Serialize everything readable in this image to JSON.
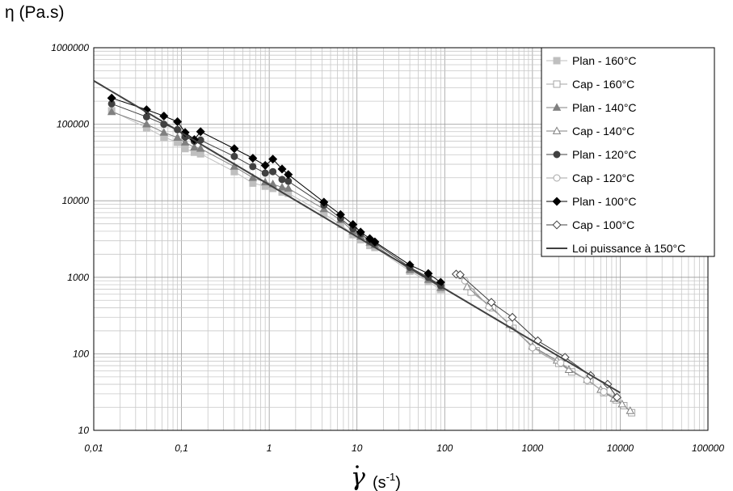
{
  "chart_data": {
    "type": "scatter",
    "title": "",
    "ylabel": "η (Pa.s)",
    "xlabel_symbol": "γ",
    "xlabel_unit_base": "(s",
    "xlabel_unit_exp": "-1",
    "xlabel_unit_end": ")",
    "xscale": "log",
    "yscale": "log",
    "xlim": [
      0.01,
      100000
    ],
    "ylim": [
      10,
      1000000
    ],
    "grid": true,
    "legend_position": "top-right",
    "x_tick_labels": [
      "0,01",
      "0,1",
      "1",
      "10",
      "100",
      "1000",
      "10000",
      "100000"
    ],
    "y_tick_labels": [
      "10",
      "100",
      "1000",
      "10000",
      "100000",
      "1000000"
    ],
    "series": [
      {
        "name": "Plan - 160°C",
        "marker": "square",
        "filled": true,
        "color": "#bfbfbf",
        "x": [
          0.016,
          0.04,
          0.063,
          0.09,
          0.11,
          0.14,
          0.165,
          0.4,
          0.65,
          0.9,
          1.1,
          1.4,
          1.65,
          4.2,
          6.5,
          9,
          11,
          14,
          16,
          40,
          65,
          90
        ],
        "y": [
          150000,
          90000,
          68000,
          58000,
          48000,
          43000,
          41000,
          24000,
          17000,
          15500,
          14500,
          13000,
          12500,
          6800,
          4900,
          3600,
          3100,
          2600,
          2450,
          1200,
          880,
          690
        ]
      },
      {
        "name": "Cap - 160°C",
        "marker": "square",
        "filled": false,
        "color": "#a6a6a6",
        "x": [
          200,
          350,
          600,
          1100,
          2000,
          2800,
          4500,
          6500,
          9000,
          11000,
          13500
        ],
        "y": [
          640,
          400,
          215,
          110,
          75,
          58,
          44,
          31,
          25,
          21,
          17
        ]
      },
      {
        "name": "Plan - 140°C",
        "marker": "triangle",
        "filled": true,
        "color": "#808080",
        "x": [
          0.016,
          0.04,
          0.063,
          0.09,
          0.11,
          0.14,
          0.165,
          0.4,
          0.65,
          0.9,
          1.1,
          1.4,
          1.65,
          4.2,
          6.5,
          9,
          11,
          14,
          16,
          40,
          65,
          90
        ],
        "y": [
          145000,
          100000,
          78000,
          67000,
          58000,
          50000,
          48000,
          28000,
          20000,
          17500,
          16500,
          15000,
          14500,
          7800,
          5600,
          4000,
          3400,
          2850,
          2650,
          1250,
          930,
          730
        ]
      },
      {
        "name": "Cap - 140°C",
        "marker": "triangle",
        "filled": false,
        "color": "#808080",
        "x": [
          180,
          320,
          550,
          1000,
          1900,
          2600,
          4200,
          6000,
          8500,
          10500,
          13000
        ],
        "y": [
          750,
          430,
          240,
          125,
          82,
          62,
          46,
          34,
          26,
          22,
          18
        ]
      },
      {
        "name": "Plan - 120°C",
        "marker": "circle",
        "filled": true,
        "color": "#404040",
        "x": [
          0.016,
          0.04,
          0.063,
          0.09,
          0.11,
          0.14,
          0.165,
          0.4,
          0.65,
          0.9,
          1.1,
          1.4,
          1.65,
          4.2,
          6.5,
          9,
          11,
          14,
          16,
          40,
          65,
          90
        ],
        "y": [
          185000,
          125000,
          100000,
          85000,
          68000,
          60000,
          62000,
          38000,
          28000,
          23000,
          24000,
          19000,
          18000,
          8800,
          5900,
          4300,
          3700,
          3000,
          2800,
          1350,
          1000,
          780
        ]
      },
      {
        "name": "Cap - 120°C",
        "marker": "circle",
        "filled": false,
        "color": "#a6a6a6",
        "x": [
          150,
          170,
          320,
          550,
          1000,
          2100,
          4200,
          6500,
          9300
        ],
        "y": [
          1050,
          900,
          410,
          250,
          120,
          76,
          45,
          32,
          26
        ]
      },
      {
        "name": "Plan - 100°C",
        "marker": "diamond",
        "filled": true,
        "color": "#000000",
        "x": [
          0.016,
          0.04,
          0.063,
          0.09,
          0.11,
          0.14,
          0.165,
          0.4,
          0.65,
          0.9,
          1.1,
          1.4,
          1.65,
          4.2,
          6.5,
          9,
          11,
          14,
          16,
          40,
          65,
          90
        ],
        "y": [
          220000,
          155000,
          128000,
          108000,
          78000,
          63000,
          80000,
          48000,
          36000,
          29000,
          35000,
          26000,
          22000,
          9600,
          6600,
          4900,
          3900,
          3200,
          2900,
          1450,
          1120,
          860
        ]
      },
      {
        "name": "Cap - 100°C",
        "marker": "diamond",
        "filled": false,
        "color": "#404040",
        "x": [
          135,
          150,
          340,
          590,
          1150,
          2350,
          4600,
          7200,
          9200
        ],
        "y": [
          1100,
          1080,
          470,
          300,
          148,
          90,
          52,
          40,
          27
        ]
      },
      {
        "name": "Loi puissance à 150°C",
        "marker": "none",
        "line": true,
        "color": "#404040",
        "x": [
          0.01,
          10000
        ],
        "y": [
          370000,
          31
        ]
      }
    ]
  }
}
